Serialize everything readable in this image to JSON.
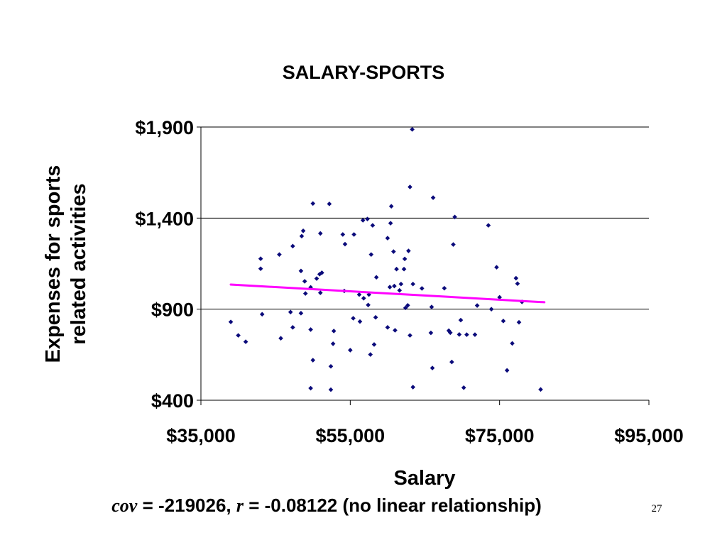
{
  "chart_data": {
    "type": "scatter",
    "title": "SALARY-SPORTS",
    "xlabel": "Salary",
    "ylabel_lines": [
      "Expenses for sports",
      "related activities"
    ],
    "xlim": [
      35000,
      95000
    ],
    "ylim": [
      400,
      1900
    ],
    "x_ticks": [
      35000,
      55000,
      75000,
      95000
    ],
    "x_tick_labels": [
      "$35,000",
      "$55,000",
      "$75,000",
      "$95,000"
    ],
    "y_ticks": [
      400,
      900,
      1400,
      1900
    ],
    "y_tick_labels": [
      "$400",
      "$900",
      "$1,400",
      "$1,900"
    ],
    "grid": "horizontal",
    "point_color": "#0a0a7a",
    "trendline_color": "#ff00ff",
    "trendline": {
      "x": [
        39000,
        81000
      ],
      "y": [
        1035,
        938
      ]
    },
    "points": [
      [
        39000,
        830
      ],
      [
        40000,
        756
      ],
      [
        41000,
        721
      ],
      [
        43000,
        1177
      ],
      [
        43000,
        1122
      ],
      [
        43200,
        872
      ],
      [
        45500,
        1200
      ],
      [
        45700,
        740
      ],
      [
        47300,
        1246
      ],
      [
        47300,
        800
      ],
      [
        47000,
        884
      ],
      [
        48400,
        1110
      ],
      [
        48400,
        878
      ],
      [
        48500,
        1301
      ],
      [
        48700,
        1330
      ],
      [
        48900,
        1053
      ],
      [
        49000,
        986
      ],
      [
        49700,
        1020
      ],
      [
        49700,
        788
      ],
      [
        50000,
        1480
      ],
      [
        50000,
        620
      ],
      [
        50500,
        1068
      ],
      [
        50900,
        1092
      ],
      [
        51000,
        1316
      ],
      [
        51000,
        990
      ],
      [
        51200,
        1100
      ],
      [
        49700,
        466
      ],
      [
        52200,
        1478
      ],
      [
        52400,
        586
      ],
      [
        52400,
        458
      ],
      [
        52700,
        710
      ],
      [
        52800,
        780
      ],
      [
        54200,
        1000
      ],
      [
        54000,
        1310
      ],
      [
        54300,
        1257
      ],
      [
        55000,
        675
      ],
      [
        55400,
        850
      ],
      [
        55500,
        1310
      ],
      [
        56200,
        980
      ],
      [
        56300,
        832
      ],
      [
        56700,
        1388
      ],
      [
        56800,
        960
      ],
      [
        57300,
        1395
      ],
      [
        57400,
        923
      ],
      [
        57500,
        980
      ],
      [
        57700,
        651
      ],
      [
        57800,
        1200
      ],
      [
        58000,
        1360
      ],
      [
        58200,
        706
      ],
      [
        58400,
        855
      ],
      [
        58500,
        1075
      ],
      [
        60000,
        1290
      ],
      [
        60000,
        800
      ],
      [
        60300,
        1021
      ],
      [
        60400,
        1372
      ],
      [
        60500,
        1465
      ],
      [
        60800,
        1216
      ],
      [
        60900,
        1027
      ],
      [
        61200,
        1120
      ],
      [
        61000,
        784
      ],
      [
        61600,
        1003
      ],
      [
        61800,
        1038
      ],
      [
        62200,
        1120
      ],
      [
        62300,
        1176
      ],
      [
        62400,
        907
      ],
      [
        62800,
        1220
      ],
      [
        62700,
        921
      ],
      [
        63000,
        1571
      ],
      [
        63000,
        756
      ],
      [
        63400,
        1038
      ],
      [
        63300,
        1887
      ],
      [
        63400,
        472
      ],
      [
        64600,
        1014
      ],
      [
        65800,
        770
      ],
      [
        65900,
        912
      ],
      [
        66000,
        577
      ],
      [
        66100,
        1512
      ],
      [
        67600,
        1015
      ],
      [
        68200,
        782
      ],
      [
        68400,
        771
      ],
      [
        68600,
        610
      ],
      [
        68800,
        1255
      ],
      [
        69000,
        1406
      ],
      [
        69600,
        761
      ],
      [
        69800,
        840
      ],
      [
        70200,
        469
      ],
      [
        70600,
        760
      ],
      [
        72000,
        920
      ],
      [
        71700,
        760
      ],
      [
        73500,
        1360
      ],
      [
        73900,
        900
      ],
      [
        74600,
        1130
      ],
      [
        75000,
        965
      ],
      [
        75500,
        835
      ],
      [
        76000,
        564
      ],
      [
        76700,
        712
      ],
      [
        77200,
        1070
      ],
      [
        77400,
        1040
      ],
      [
        77600,
        828
      ],
      [
        78000,
        940
      ],
      [
        80500,
        459
      ]
    ]
  },
  "caption": {
    "cov_symbol": "cov",
    "cov_text": " = -219026, ",
    "r_symbol": "r",
    "r_text": " = -0.08122 (no linear relationship)"
  },
  "page_number": "27"
}
